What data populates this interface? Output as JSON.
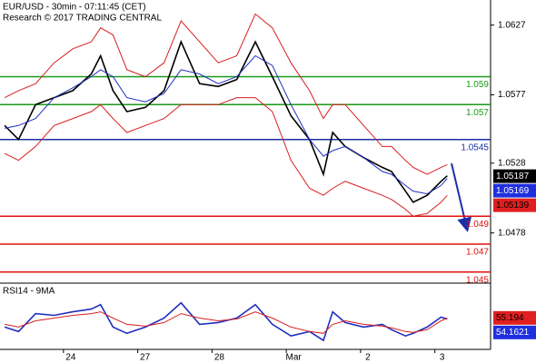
{
  "chart_data": [
    {
      "type": "line",
      "title": "EUR/USD - 30min - 07:11:45 (CET)",
      "subtitle": "Research © 2017 TRADING CENTRAL",
      "x": [
        -38,
        -29,
        -18,
        -6,
        6,
        18,
        24,
        32,
        41,
        53,
        65,
        76,
        88,
        100,
        112,
        124,
        135,
        147,
        159,
        168,
        174,
        182,
        194,
        206,
        212,
        221,
        226,
        235,
        244,
        248
      ],
      "xlim": [
        -41,
        276
      ],
      "xticks": [
        {
          "value": 0,
          "label": "24"
        },
        {
          "value": 48,
          "label": "27"
        },
        {
          "value": 96,
          "label": "28"
        },
        {
          "value": 144,
          "label": "Mar"
        },
        {
          "value": 192,
          "label": "2"
        },
        {
          "value": 240,
          "label": "3"
        }
      ],
      "ylim": [
        1.0442,
        1.0645
      ],
      "yticks": [
        1.0627,
        1.0577,
        1.0528,
        1.0478
      ],
      "series": [
        {
          "color": "#000000",
          "values": [
            1.0555,
            1.0545,
            1.057,
            1.0575,
            1.058,
            1.0592,
            1.0605,
            1.058,
            1.0565,
            1.0568,
            1.058,
            1.0615,
            1.0585,
            1.0583,
            1.0588,
            1.0615,
            1.059,
            1.0562,
            1.0545,
            1.052,
            1.055,
            1.054,
            1.0532,
            1.0525,
            1.0522,
            1.0508,
            1.05,
            1.0505,
            1.0515,
            1.0519
          ]
        },
        {
          "color": "#d81e1e",
          "values": [
            1.0575,
            1.058,
            1.0585,
            1.06,
            1.061,
            1.0615,
            1.0625,
            1.062,
            1.0595,
            1.059,
            1.06,
            1.063,
            1.0615,
            1.06,
            1.0605,
            1.0635,
            1.0625,
            1.06,
            1.058,
            1.056,
            1.057,
            1.057,
            1.0555,
            1.054,
            1.054,
            1.053,
            1.0525,
            1.052,
            1.0525,
            1.0527
          ]
        },
        {
          "color": "#d81e1e",
          "values": [
            1.0535,
            1.053,
            1.054,
            1.0555,
            1.056,
            1.0565,
            1.057,
            1.056,
            1.055,
            1.0555,
            1.056,
            1.057,
            1.057,
            1.057,
            1.0575,
            1.0575,
            1.0565,
            1.053,
            1.051,
            1.0505,
            1.051,
            1.0515,
            1.051,
            1.0505,
            1.0502,
            1.0495,
            1.049,
            1.0492,
            1.05,
            1.0505
          ]
        },
        {
          "color": "#1f2fbf",
          "values": [
            1.0553,
            1.0555,
            1.056,
            1.0575,
            1.0582,
            1.059,
            1.0595,
            1.059,
            1.0575,
            1.0572,
            1.0578,
            1.0595,
            1.0592,
            1.0585,
            1.059,
            1.0605,
            1.0598,
            1.057,
            1.0545,
            1.0533,
            1.0537,
            1.054,
            1.0532,
            1.0522,
            1.052,
            1.0512,
            1.0508,
            1.0506,
            1.0512,
            1.0517
          ]
        }
      ],
      "levels": [
        {
          "value": 1.059,
          "color": "#1a9a1a"
        },
        {
          "value": 1.057,
          "color": "#1a9a1a"
        },
        {
          "value": 1.0545,
          "color": "#1a2fa8"
        },
        {
          "value": 1.049,
          "color": "#e01010"
        },
        {
          "value": 1.047,
          "color": "#e01010"
        },
        {
          "value": 1.045,
          "color": "#e01010"
        }
      ],
      "tags": [
        {
          "value": 1.05187,
          "color": "#000000",
          "text_color": "#ffffff"
        },
        {
          "value": 1.05169,
          "color": "#1f2fdf",
          "text_color": "#ffffff"
        },
        {
          "value": 1.05139,
          "color": "#e02020",
          "text_color": "#000000"
        }
      ]
    },
    {
      "type": "line",
      "title": "RSI14 - 9MA",
      "x": [
        -38,
        -29,
        -18,
        -6,
        6,
        18,
        24,
        32,
        41,
        53,
        65,
        76,
        88,
        100,
        112,
        124,
        135,
        147,
        159,
        168,
        174,
        182,
        194,
        206,
        212,
        221,
        226,
        235,
        244,
        248
      ],
      "xlim": [
        -41,
        276
      ],
      "ylim": [
        20,
        90
      ],
      "series": [
        {
          "color": "#1f2fbf",
          "values": [
            45,
            40,
            60,
            58,
            62,
            65,
            70,
            45,
            38,
            45,
            55,
            72,
            48,
            50,
            55,
            70,
            48,
            35,
            40,
            30,
            62,
            50,
            45,
            48,
            42,
            35,
            38,
            45,
            56,
            54
          ]
        },
        {
          "color": "#d81e1e",
          "values": [
            48,
            45,
            52,
            55,
            58,
            60,
            62,
            55,
            48,
            46,
            50,
            60,
            55,
            52,
            54,
            62,
            55,
            45,
            40,
            38,
            48,
            52,
            48,
            46,
            44,
            40,
            39,
            42,
            52,
            55
          ]
        }
      ],
      "tags": [
        {
          "value": 55.194,
          "color": "#e02020",
          "text_color": "#000000"
        },
        {
          "value": 54.1621,
          "color": "#1f2fdf",
          "text_color": "#ffffff"
        }
      ]
    }
  ]
}
